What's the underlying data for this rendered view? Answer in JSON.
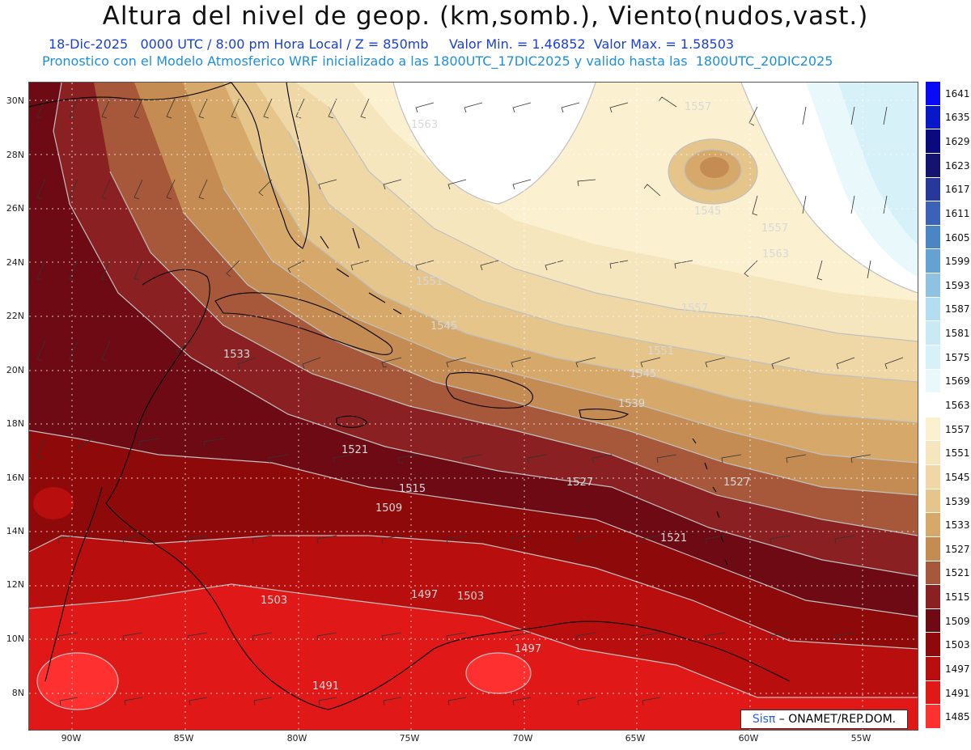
{
  "title": "Altura del nivel de geop. (km,somb.), Viento(nudos,vast.)",
  "subtitle1": "18-Dic-2025   0000 UTC / 8:00 pm Hora Local / Z = 850mb     Valor Min. = 1.46852  Valor Max. = 1.58503",
  "subtitle2": "Pronostico con el Modelo Atmosferico WRF inicializado a las 1800UTC_17DIC2025 y valido hasta las  1800UTC_20DIC2025",
  "lat_labels": [
    "30N",
    "28N",
    "26N",
    "24N",
    "22N",
    "20N",
    "18N",
    "16N",
    "14N",
    "12N",
    "10N",
    "8N"
  ],
  "lon_labels": [
    "90W",
    "85W",
    "80W",
    "75W",
    "70W",
    "65W",
    "60W",
    "55W"
  ],
  "colorbar": {
    "levels": [
      "1641",
      "1635",
      "1629",
      "1623",
      "1617",
      "1611",
      "1605",
      "1599",
      "1593",
      "1587",
      "1581",
      "1575",
      "1569",
      "1563",
      "1557",
      "1551",
      "1545",
      "1539",
      "1533",
      "1527",
      "1521",
      "1515",
      "1509",
      "1503",
      "1497",
      "1491",
      "1485"
    ],
    "colors": [
      "#0a0af5",
      "#0818c8",
      "#0a0a80",
      "#141470",
      "#28389a",
      "#3a62b6",
      "#4a86c6",
      "#64a2d4",
      "#8ec2e0",
      "#b2def0",
      "#c8eaf4",
      "#d6f2f8",
      "#e8f8fb",
      "#ffffff",
      "#fbf0d0",
      "#f6e6be",
      "#efd8a6",
      "#e5c58a",
      "#d6a96a",
      "#c48c52",
      "#a8583a",
      "#8a2022",
      "#6e0a14",
      "#8e0a0a",
      "#b80e0e",
      "#e01818",
      "#ff3030"
    ]
  },
  "contour_labels": [
    "1563",
    "1557",
    "1545",
    "1557",
    "1563",
    "1551",
    "1557",
    "1545",
    "1551",
    "1545",
    "1533",
    "1539",
    "1527",
    "1521",
    "1527",
    "1521",
    "1515",
    "1509",
    "1503",
    "1497",
    "1503",
    "1497",
    "1491"
  ],
  "credit": {
    "logo": "Sisπ",
    "text": " – ONAMET/REP.DOM."
  }
}
